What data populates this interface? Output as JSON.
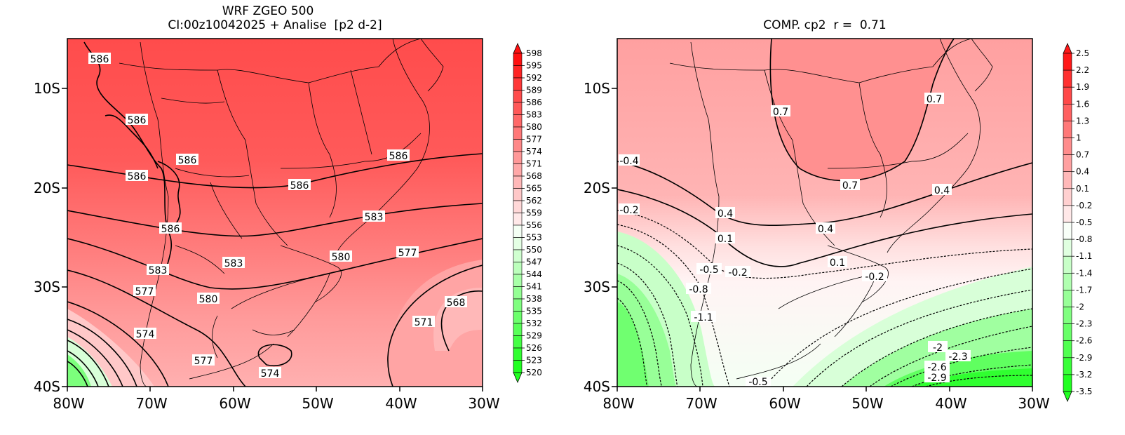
{
  "left_panel": {
    "title_line1": "WRF ZGEO 500",
    "title_line2": "CI:00z10042025 + Analise  [p2 d-2]",
    "y_ticks": [
      "10S",
      "20S",
      "30S",
      "40S"
    ],
    "x_ticks": [
      "80W",
      "70W",
      "60W",
      "50W",
      "40W",
      "30W"
    ],
    "contour_labels": [
      "586",
      "586",
      "586",
      "586",
      "586",
      "586",
      "586",
      "583",
      "583",
      "583",
      "580",
      "580",
      "577",
      "577",
      "577",
      "574",
      "574",
      "571",
      "568"
    ],
    "colorbar": {
      "values": [
        "598",
        "595",
        "592",
        "589",
        "586",
        "583",
        "580",
        "577",
        "574",
        "571",
        "568",
        "565",
        "562",
        "559",
        "556",
        "553",
        "550",
        "547",
        "544",
        "541",
        "538",
        "535",
        "532",
        "529",
        "526",
        "523",
        "520"
      ],
      "colors": [
        "#ff1010",
        "#ff2424",
        "#ff3838",
        "#ff4c4c",
        "#ff5858",
        "#ff6868",
        "#ff7878",
        "#ff8888",
        "#ff9898",
        "#ffa8a8",
        "#ffb8b8",
        "#ffc8c8",
        "#ffd8d8",
        "#ffe8e8",
        "#f4fff4",
        "#e4ffe4",
        "#d0ffd0",
        "#bcffbc",
        "#a8ffa8",
        "#94ff94",
        "#80ff80",
        "#6cff6c",
        "#58ff58",
        "#44ff44",
        "#30ff30",
        "#20ff20"
      ]
    }
  },
  "right_panel": {
    "title": "COMP. cp2  r =  0.71",
    "y_ticks": [
      "10S",
      "20S",
      "30S",
      "40S"
    ],
    "x_ticks": [
      "80W",
      "70W",
      "60W",
      "50W",
      "40W",
      "30W"
    ],
    "contour_labels": [
      "0.7",
      "0.7",
      "0.7",
      "-0.4",
      "0.4",
      "0.4",
      "-0.2",
      "0.4",
      "0.1",
      "0.1",
      "-0.5",
      "-0.2",
      "-0.8",
      "-1.1",
      "-0.2",
      "-2",
      "-2.3",
      "-2.6",
      "-2.9",
      "-0.5"
    ],
    "colorbar": {
      "values": [
        "2.5",
        "2.2",
        "1.9",
        "1.6",
        "1.3",
        "1",
        "0.7",
        "0.4",
        "0.1",
        "-0.2",
        "-0.5",
        "-0.8",
        "-1.1",
        "-1.4",
        "-1.7",
        "-2",
        "-2.3",
        "-2.6",
        "-2.9",
        "-3.2",
        "-3.5"
      ],
      "colors": [
        "#ff1818",
        "#ff3030",
        "#ff4848",
        "#ff6060",
        "#ff7878",
        "#ff8c8c",
        "#ffa0a0",
        "#ffb8b8",
        "#ffd0d0",
        "#ffe8e8",
        "#f8fff8",
        "#e0ffe0",
        "#c8ffc8",
        "#b0ffb0",
        "#98ff98",
        "#80ff80",
        "#68ff68",
        "#50ff50",
        "#38ff38",
        "#20ff20"
      ]
    }
  }
}
